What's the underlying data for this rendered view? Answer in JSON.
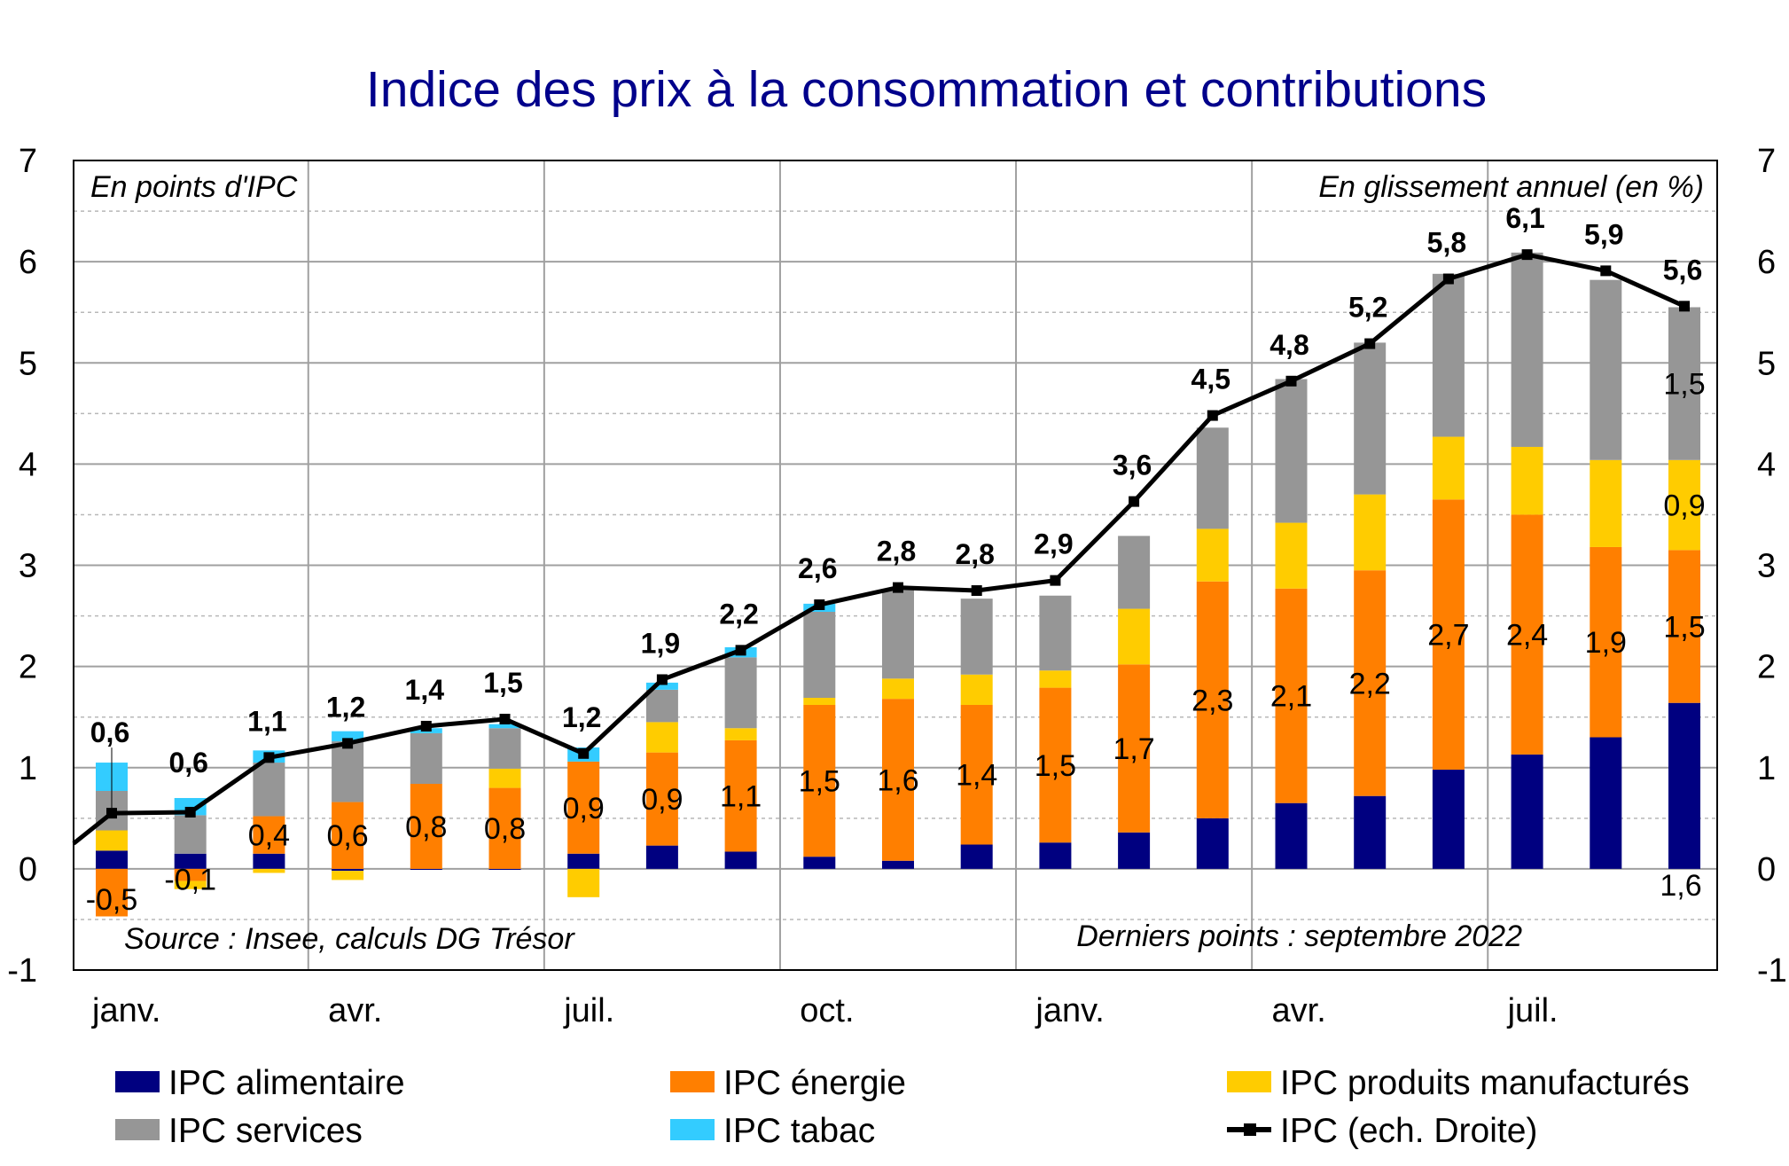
{
  "chart_data": {
    "type": "bar",
    "subtype": "stacked bar with line",
    "title": "Indice des prix à la consommation et contributions",
    "left_axis_note": "En points d'IPC",
    "right_axis_note": "En glissement annuel (en %)",
    "source": "Source : Insee, calculs DG Trésor",
    "last_point_note": "Derniers points : septembre 2022",
    "ylim": [
      -1,
      7
    ],
    "y_ticks": [
      "-1",
      "0",
      "1",
      "2",
      "3",
      "4",
      "5",
      "6",
      "7"
    ],
    "grid": true,
    "legend_position": "bottom",
    "x_tick_labels": [
      "janv.",
      "avr.",
      "juil.",
      "oct.",
      "janv.",
      "avr.",
      "juil."
    ],
    "x_tick_positions": [
      0,
      3,
      6,
      9,
      12,
      15,
      18
    ],
    "periods": [
      "janv. 2021",
      "févr. 2021",
      "mars 2021",
      "avr. 2021",
      "mai 2021",
      "juin 2021",
      "juil. 2021",
      "août 2021",
      "sept. 2021",
      "oct. 2021",
      "nov. 2021",
      "déc. 2021",
      "janv. 2022",
      "févr. 2022",
      "mars 2022",
      "avr. 2022",
      "mai 2022",
      "juin 2022",
      "juil. 2022",
      "août 2022",
      "sept. 2022"
    ],
    "series": [
      {
        "name": "IPC alimentaire",
        "kind": "bar",
        "color": "#000080",
        "values": [
          0.18,
          0.15,
          0.15,
          -0.02,
          -0.01,
          -0.01,
          0.15,
          0.23,
          0.17,
          0.12,
          0.08,
          0.24,
          0.26,
          0.36,
          0.5,
          0.65,
          0.72,
          0.98,
          1.13,
          1.3,
          1.64
        ]
      },
      {
        "name": "IPC énergie",
        "kind": "bar",
        "color": "#ff7f00",
        "values": [
          -0.47,
          -0.12,
          0.37,
          0.66,
          0.84,
          0.8,
          0.91,
          0.92,
          1.1,
          1.5,
          1.6,
          1.38,
          1.53,
          1.66,
          2.34,
          2.12,
          2.23,
          2.67,
          2.37,
          1.88,
          1.51
        ]
      },
      {
        "name": "IPC produits manufacturés",
        "kind": "bar",
        "color": "#ffcc00",
        "values": [
          0.2,
          -0.08,
          -0.04,
          -0.09,
          0.0,
          0.19,
          -0.28,
          0.3,
          0.12,
          0.07,
          0.2,
          0.3,
          0.17,
          0.55,
          0.52,
          0.65,
          0.75,
          0.62,
          0.67,
          0.86,
          0.89
        ]
      },
      {
        "name": "IPC services",
        "kind": "bar",
        "color": "#969696",
        "values": [
          0.39,
          0.38,
          0.53,
          0.6,
          0.5,
          0.4,
          0.0,
          0.32,
          0.7,
          0.85,
          0.88,
          0.75,
          0.74,
          0.72,
          1.0,
          1.42,
          1.5,
          1.61,
          1.92,
          1.78,
          1.51
        ]
      },
      {
        "name": "IPC tabac",
        "kind": "bar",
        "color": "#33ccff",
        "values": [
          0.28,
          0.17,
          0.12,
          0.1,
          0.05,
          0.04,
          0.14,
          0.07,
          0.1,
          0.08,
          0.0,
          0.0,
          0.0,
          0.0,
          0.0,
          0.0,
          0.0,
          0.0,
          0.0,
          0.0,
          0.0
        ]
      },
      {
        "name": "IPC (ech. Droite)",
        "kind": "line",
        "color": "#000000",
        "values": [
          0.55,
          0.56,
          1.1,
          1.24,
          1.41,
          1.48,
          1.14,
          1.87,
          2.16,
          2.61,
          2.78,
          2.75,
          2.85,
          3.63,
          4.48,
          4.82,
          5.19,
          5.83,
          6.07,
          5.91,
          5.56
        ]
      }
    ],
    "line_start_value": 0.25,
    "segment_labels": {
      "IPC énergie": [
        "-0,5",
        "-0,1",
        "0,4",
        "0,6",
        "0,8",
        "0,8",
        "0,9",
        "0,9",
        "1,1",
        "1,5",
        "1,6",
        "1,4",
        "1,5",
        "1,7",
        "2,3",
        "2,1",
        "2,2",
        "2,7",
        "2,4",
        "1,9",
        "1,5"
      ],
      "IPC produits manufacturés": [
        "",
        "",
        "",
        "",
        "",
        "",
        "",
        "",
        "",
        "",
        "",
        "",
        "",
        "",
        "",
        "",
        "",
        "",
        "",
        "",
        "0,9"
      ],
      "IPC services": [
        "",
        "",
        "",
        "",
        "",
        "",
        "",
        "",
        "",
        "",
        "",
        "",
        "",
        "",
        "",
        "",
        "",
        "",
        "",
        "",
        "1,5"
      ],
      "IPC alimentaire": [
        "",
        "",
        "",
        "",
        "",
        "",
        "",
        "",
        "",
        "",
        "",
        "",
        "",
        "",
        "",
        "",
        "",
        "",
        "",
        "",
        "1,6"
      ]
    },
    "total_labels": [
      "0,6",
      "0,6",
      "1,1",
      "1,2",
      "1,4",
      "1,5",
      "1,2",
      "1,9",
      "2,2",
      "2,6",
      "2,8",
      "2,8",
      "2,9",
      "3,6",
      "4,5",
      "4,8",
      "5,2",
      "5,8",
      "6,1",
      "5,9",
      "5,6"
    ]
  }
}
